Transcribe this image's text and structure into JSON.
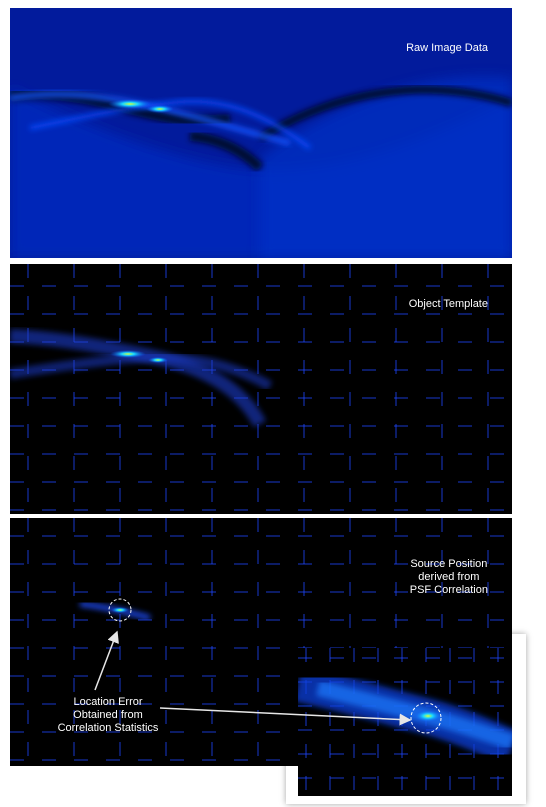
{
  "panels": {
    "raw": {
      "label": "Raw Image Data"
    },
    "template": {
      "label": "Object Template"
    },
    "correlation": {
      "label": "Source Position\nderived from\nPSF Correlation"
    }
  },
  "annotation": {
    "label": "Location Error\nObtained from\nCorrelation Statistics"
  },
  "colors": {
    "background": "#ffffff",
    "raw_fill": "#021b9c",
    "grid": "#1e46ff",
    "peak": "#d6ff3a",
    "text": "#ffffff"
  }
}
